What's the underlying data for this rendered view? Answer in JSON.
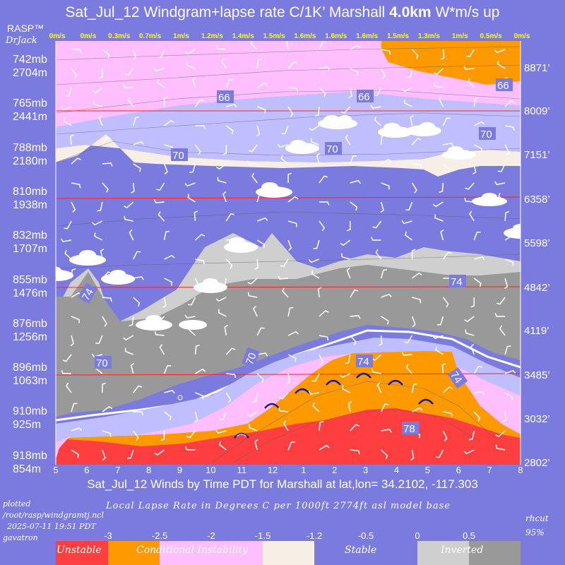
{
  "header": {
    "title_prefix": "Sat_Jul_12 Windgram+lapse rate C/1K’  Marshall ",
    "title_bold": "4.0km",
    "title_suffix": "  W*m/s up",
    "brand": "RASP™",
    "brand_sub": "DrJack"
  },
  "wstar_labels": [
    "0m/s",
    "0m/s",
    "0.3m/s",
    "0.7m/s",
    "1m/s",
    "1.2m/s",
    "1.4m/s",
    "1.5m/s",
    "1.6m/s",
    "1.6m/s",
    "1.6m/s",
    "1.5m/s",
    "1.3m/s",
    "1m/s",
    "0.5m/s",
    "0m/s"
  ],
  "left_axis": [
    {
      "mb": "742mb",
      "m": "2704m"
    },
    {
      "mb": "765mb",
      "m": "2441m"
    },
    {
      "mb": "788mb",
      "m": "2180m"
    },
    {
      "mb": "810mb",
      "m": "1938m"
    },
    {
      "mb": "832mb",
      "m": "1707m"
    },
    {
      "mb": "855mb",
      "m": "1476m"
    },
    {
      "mb": "876mb",
      "m": "1256m"
    },
    {
      "mb": "896mb",
      "m": "1063m"
    },
    {
      "mb": "910mb",
      "m": "925m"
    },
    {
      "mb": "918mb",
      "m": "854m"
    }
  ],
  "right_axis": [
    "8871’",
    "8009’",
    "7151’",
    "6358’",
    "5598’",
    "4842’",
    "4119’",
    "3485’",
    "3032’",
    "2802’"
  ],
  "chart_data": {
    "type": "heatmap",
    "title": "Sat_Jul_12 Windgram+lapse rate C/1K’  Marshall 4.0km  W*m/s up",
    "x_ticks": [
      "5",
      "6",
      "7",
      "8",
      "9",
      "10",
      "11",
      "12",
      "1",
      "2",
      "3",
      "4",
      "5",
      "6",
      "7",
      "8"
    ],
    "xlabel": "Sat_Jul_12 Winds by Time PDT for Marshall at lat,lon= 34.2102, -117.303",
    "y_left_pressure_mb": [
      742,
      765,
      788,
      810,
      832,
      855,
      876,
      896,
      910,
      918
    ],
    "y_left_height_m": [
      2704,
      2441,
      2180,
      1938,
      1707,
      1476,
      1256,
      1063,
      925,
      854
    ],
    "y_right_height_ft": [
      8871,
      8009,
      7151,
      6358,
      5598,
      4842,
      4119,
      3485,
      3032,
      2802
    ],
    "w_star_m_per_s": [
      0,
      0,
      0.3,
      0.7,
      1,
      1.2,
      1.4,
      1.5,
      1.6,
      1.6,
      1.6,
      1.5,
      1.3,
      1,
      0.5,
      0
    ],
    "humidity_labels": [
      "66",
      "66",
      "66",
      "70",
      "70",
      "70",
      "74",
      "74",
      "70",
      "70",
      "74",
      "74",
      "78"
    ],
    "grid": false
  },
  "legend": {
    "title": "Local Lapse Rate in Degrees C per 1000ft  2774ft asl model base",
    "ticks": [
      "-3",
      "-2.5",
      "-2",
      "-1.5",
      "-1.2",
      "-0.5",
      "0",
      "0.5"
    ],
    "categories": [
      "Unstable",
      "Conditional Instability",
      "Stable",
      "Inverted"
    ],
    "colors": {
      "unstable": "#ff3f3f",
      "conditional": "#ff9900",
      "pink": "#ffbfff",
      "lavender": "#bfbfff",
      "cream": "#f7efe6",
      "stable": "#7b7bdf",
      "light_gray": "#cfcfcf",
      "dark_gray": "#999999"
    }
  },
  "footer": {
    "plotted": "plotted",
    "path": "/root/rasp/windgramtj.ncl",
    "timestamp": "2025-07-11 19:51 PDT",
    "host": "gavatron",
    "rhcut": "rhcut",
    "rhcut_val": "95%"
  }
}
